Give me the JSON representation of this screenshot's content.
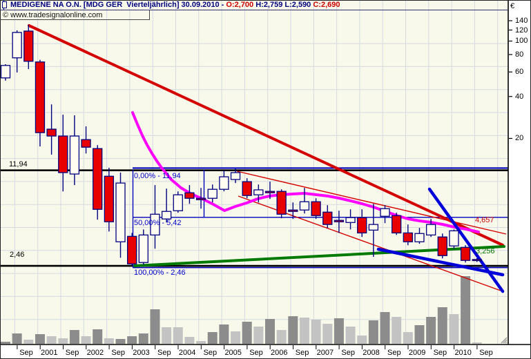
{
  "header": {
    "icon": "candlestick-icon",
    "title": "MEDIGENE NA O.N. [MDG GER  Vierteljährlich] 30.09.2010 - ",
    "open_label": "O:2,700 ",
    "high_label": "H:2,759 ",
    "low_label": "L:2,590 ",
    "close_label": "C:2,690",
    "copyright": "© www.tradesignalonline.com"
  },
  "axes": {
    "currency": "€",
    "y_ticks": [
      140,
      120,
      100,
      80,
      60,
      40,
      20
    ],
    "x_ticks": [
      "Sep",
      "2001",
      "Sep",
      "2002",
      "Sep",
      "2003",
      "Sep",
      "2004",
      "Sep",
      "2005",
      "Sep",
      "2006",
      "Sep",
      "2007",
      "Sep",
      "2008",
      "Sep",
      "2009",
      "Sep",
      "2010",
      "Sep"
    ]
  },
  "levels": {
    "resistance": "11,94",
    "support": "2,46",
    "fib_0": "0,00% - 11,94",
    "fib_50": "50,00% - 5,42",
    "fib_100": "100,00% - 2,46",
    "price_label_red": "4,657",
    "price_label_green": "3,256"
  },
  "colors": {
    "bg": "#f8f9ea",
    "grid": "#d6d9e1",
    "up_candle": "#fffdf2",
    "down_candle": "#e80000",
    "candle_border": "#000080",
    "trend_red": "#d40000",
    "ma_magenta": "#ff00ff",
    "trend_green": "#007a00",
    "trend_blue": "#0000d8",
    "fib_blue": "#0000bb",
    "level_black": "#000000",
    "vol_dark": "#8c8c8c",
    "vol_light": "#c3c3c3",
    "label_red": "#cc0000",
    "label_green": "#007700"
  },
  "chart_data": {
    "type": "candlestick",
    "instrument": "MEDIGENE NA O.N. [MDG GER]",
    "period": "Vierteljährlich (quarterly)",
    "y_scale": "log",
    "ylim": [
      2.0,
      160
    ],
    "currency": "EUR",
    "last_bar": {
      "date": "30.09.2010",
      "open": 2.7,
      "high": 2.759,
      "low": 2.59,
      "close": 2.69
    },
    "quarters": [
      "2000-Q2",
      "2000-Q3",
      "2000-Q4",
      "2001-Q1",
      "2001-Q2",
      "2001-Q3",
      "2001-Q4",
      "2002-Q1",
      "2002-Q2",
      "2002-Q3",
      "2002-Q4",
      "2003-Q1",
      "2003-Q2",
      "2003-Q3",
      "2003-Q4",
      "2004-Q1",
      "2004-Q2",
      "2004-Q3",
      "2004-Q4",
      "2005-Q1",
      "2005-Q2",
      "2005-Q3",
      "2005-Q4",
      "2006-Q1",
      "2006-Q2",
      "2006-Q3",
      "2006-Q4",
      "2007-Q1",
      "2007-Q2",
      "2007-Q3",
      "2007-Q4",
      "2008-Q1",
      "2008-Q2",
      "2008-Q3",
      "2008-Q4",
      "2009-Q1",
      "2009-Q2",
      "2009-Q3",
      "2009-Q4",
      "2010-Q1",
      "2010-Q2",
      "2010-Q3"
    ],
    "ohlc": [
      [
        54.4,
        68.2,
        52.0,
        66.8
      ],
      [
        75.8,
        119.4,
        59.5,
        115.3
      ],
      [
        118.0,
        130.7,
        62.9,
        71.6
      ],
      [
        70.8,
        73.3,
        17.5,
        22.0
      ],
      [
        23.3,
        35.1,
        15.3,
        20.8
      ],
      [
        20.8,
        29.6,
        8.33,
        11.36
      ],
      [
        11.1,
        29.3,
        9.24,
        20.8
      ],
      [
        19.6,
        24.4,
        15.6,
        17.3
      ],
      [
        16.9,
        17.9,
        5.22,
        6.19
      ],
      [
        10.7,
        12.3,
        4.29,
        5.04
      ],
      [
        3.62,
        11.36,
        2.78,
        9.56
      ],
      [
        3.96,
        4.19,
        2.45,
        2.51
      ],
      [
        2.57,
        4.44,
        2.48,
        4.05
      ],
      [
        4.05,
        9.24,
        3.23,
        5.71
      ],
      [
        5.28,
        8.72,
        4.98,
        5.98
      ],
      [
        6.05,
        8.33,
        5.85,
        7.87
      ],
      [
        8.14,
        9.24,
        6.78,
        7.43
      ],
      [
        7.43,
        8.82,
        6.26,
        7.26
      ],
      [
        7.43,
        9.34,
        6.94,
        8.62
      ],
      [
        8.62,
        11.75,
        8.33,
        10.6
      ],
      [
        10.14,
        12.1,
        9.56,
        11.36
      ],
      [
        9.78,
        10.36,
        7.43,
        7.78
      ],
      [
        7.87,
        9.34,
        6.94,
        8.54
      ],
      [
        8.33,
        9.78,
        7.35,
        8.14
      ],
      [
        8.33,
        8.62,
        5.34,
        5.71
      ],
      [
        6.12,
        6.94,
        5.28,
        5.98
      ],
      [
        6.12,
        8.82,
        5.78,
        7.02
      ],
      [
        7.02,
        7.43,
        5.28,
        5.58
      ],
      [
        5.91,
        6.63,
        4.55,
        4.82
      ],
      [
        5.16,
        6.05,
        4.19,
        5.04
      ],
      [
        4.98,
        6.19,
        4.44,
        5.4
      ],
      [
        5.4,
        6.19,
        3.92,
        4.19
      ],
      [
        4.39,
        6.78,
        2.82,
        4.82
      ],
      [
        5.52,
        6.63,
        4.93,
        6.26
      ],
      [
        5.58,
        5.85,
        4.05,
        4.19
      ],
      [
        4.19,
        4.82,
        3.42,
        3.62
      ],
      [
        3.62,
        4.55,
        3.5,
        4.15
      ],
      [
        4.05,
        5.28,
        3.92,
        4.82
      ],
      [
        3.92,
        4.15,
        2.75,
        2.88
      ],
      [
        3.38,
        4.44,
        3.23,
        4.34
      ],
      [
        3.3,
        3.42,
        2.57,
        2.66
      ],
      [
        2.7,
        2.759,
        2.59,
        2.69
      ]
    ],
    "volume_rel": [
      2,
      14,
      5,
      13,
      10,
      7,
      19,
      10,
      20,
      7,
      6,
      10,
      14,
      49,
      23,
      23,
      9,
      3,
      16,
      27,
      17,
      31,
      24,
      35,
      19,
      39,
      37,
      34,
      28,
      36,
      24,
      11,
      33,
      45,
      38,
      16,
      26,
      38,
      52,
      42,
      97,
      1
    ],
    "volume_shade": [
      "d",
      "d",
      "l",
      "d",
      "l",
      "l",
      "d",
      "l",
      "d",
      "l",
      "d",
      "d",
      "d",
      "d",
      "l",
      "l",
      "l",
      "l",
      "d",
      "d",
      "l",
      "d",
      "l",
      "d",
      "l",
      "d",
      "l",
      "l",
      "l",
      "d",
      "l",
      "l",
      "d",
      "d",
      "l",
      "l",
      "d",
      "d",
      "d",
      "l",
      "d",
      "l"
    ],
    "fib_levels": [
      {
        "pct": "0,00%",
        "price": 11.94
      },
      {
        "pct": "50,00%",
        "price": 5.42
      },
      {
        "pct": "100,00%",
        "price": 2.46
      }
    ],
    "horizontal_levels": [
      11.94,
      2.46
    ],
    "trendline_end_prices": {
      "red_resistance": 4.657,
      "blue_support": 3.256
    }
  }
}
